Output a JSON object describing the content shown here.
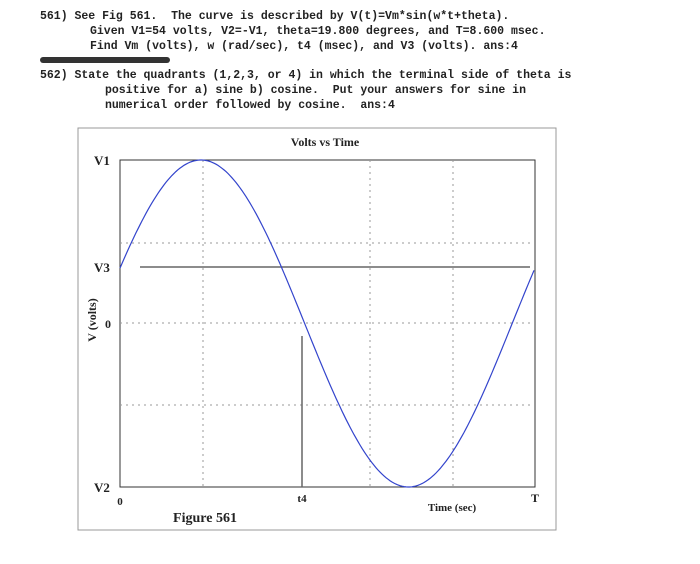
{
  "problems": [
    {
      "lines": [
        "561) See Fig 561.  The curve is described by V(t)=Vm*sin(w*t+theta).",
        "Given V1=54 volts, V2=-V1, theta=19.800 degrees, and T=8.600 msec.",
        "Find Vm (volts), w (rad/sec), t4 (msec), and V3 (volts). ans:4"
      ]
    },
    {
      "lines": [
        "562) State the quadrants (1,2,3, or 4) in which the terminal side of theta is",
        "positive for a) sine b) cosine.  Put your answers for sine in",
        "numerical order followed by cosine.  ans:4"
      ]
    }
  ],
  "figure": {
    "title": "Volts vs Time",
    "y_axis_label": "V (volts)",
    "x_axis_label": "Time (sec)",
    "y_labels": [
      "V1",
      "V3",
      "0",
      "V2"
    ],
    "x_labels": [
      "0",
      "t4",
      "T"
    ],
    "caption": "Figure 561"
  }
}
